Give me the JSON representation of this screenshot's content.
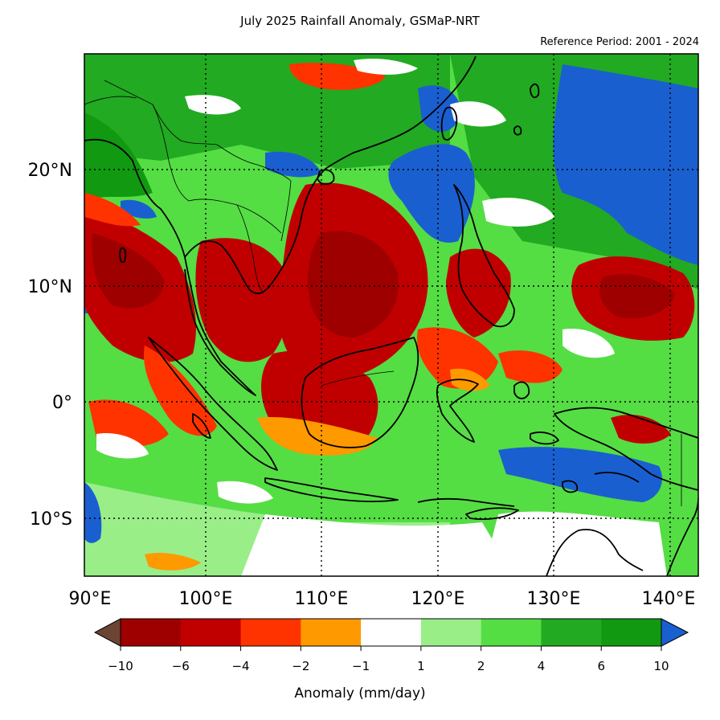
{
  "title": "July 2025 Rainfall Anomaly, GSMaP-NRT",
  "reference": "Reference Period: 2001 - 2024",
  "lat_labels": [
    "20°N",
    "10°N",
    "0°",
    "10°S"
  ],
  "lon_labels": [
    "90°E",
    "100°E",
    "110°E",
    "120°E",
    "130°E",
    "140°E"
  ],
  "colorbar": {
    "title": "Anomaly (mm/day)",
    "ticks": [
      "−10",
      "−6",
      "−4",
      "−2",
      "−1",
      "1",
      "2",
      "4",
      "6",
      "10"
    ],
    "colors": {
      "under": "#6b4434",
      "bins": [
        "#9e0000",
        "#c00000",
        "#ff3300",
        "#ff9900",
        "#ffffff",
        "#99ee88",
        "#55dd44",
        "#22aa22",
        "#119911"
      ],
      "over": "#1a5fd0"
    }
  },
  "legend_colors": {
    "dry_dark": "#9e0000",
    "dry_mid": "#c00000",
    "dry_red": "#ff3300",
    "dry_orange": "#ff9900",
    "neutral": "#ffffff",
    "wet_light": "#99ee88",
    "wet_mid": "#55dd44",
    "wet_green": "#22aa22",
    "wet_dark": "#119911",
    "wet_blue": "#1a5fd0"
  }
}
